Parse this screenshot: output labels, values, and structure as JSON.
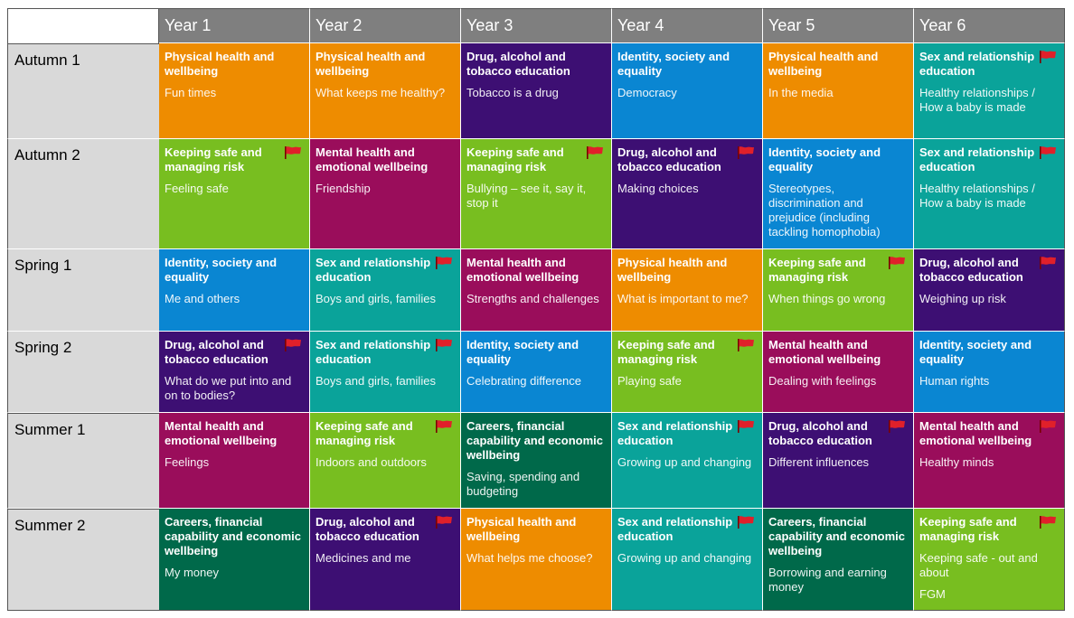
{
  "colors": {
    "physical": "#ee8c00",
    "drug": "#3d0f73",
    "identity": "#0a86d2",
    "sex": "#0aa39a",
    "safe": "#78be20",
    "mental": "#9a0d5b",
    "careers": "#00694a",
    "flag": "#e0202a"
  },
  "years": [
    "Year 1",
    "Year 2",
    "Year 3",
    "Year 4",
    "Year 5",
    "Year 6"
  ],
  "terms": [
    "Autumn 1",
    "Autumn 2",
    "Spring 1",
    "Spring 2",
    "Summer 1",
    "Summer 2"
  ],
  "rows": [
    [
      {
        "theme": "Physical health and wellbeing",
        "topic": "Fun times",
        "color": "orange",
        "flag": false
      },
      {
        "theme": "Physical health and wellbeing",
        "topic": "What keeps me healthy?",
        "color": "orange",
        "flag": false
      },
      {
        "theme": "Drug, alcohol and tobacco education",
        "topic": "Tobacco is a drug",
        "color": "purple",
        "flag": false
      },
      {
        "theme": "Identity, society and equality",
        "topic": "Democracy",
        "color": "blue",
        "flag": false
      },
      {
        "theme": "Physical health and wellbeing",
        "topic": "In the media",
        "color": "orange",
        "flag": false
      },
      {
        "theme": "Sex and relationship education",
        "topic": "Healthy relationships / How a baby is made",
        "color": "teal",
        "flag": true
      }
    ],
    [
      {
        "theme": "Keeping safe and managing risk",
        "topic": "Feeling safe",
        "color": "green",
        "flag": true
      },
      {
        "theme": "Mental health and emotional wellbeing",
        "topic": "Friendship",
        "color": "maroon",
        "flag": false
      },
      {
        "theme": "Keeping safe and managing risk",
        "topic": "Bullying – see it, say it, stop it",
        "color": "green",
        "flag": true
      },
      {
        "theme": "Drug, alcohol and tobacco education",
        "topic": "Making choices",
        "color": "purple",
        "flag": true
      },
      {
        "theme": "Identity, society and equality",
        "topic": "Stereotypes, discrimination and prejudice (including tackling homophobia)",
        "color": "blue",
        "flag": false
      },
      {
        "theme": "Sex and relationship education",
        "topic": "Healthy relationships / How a baby is made",
        "color": "teal",
        "flag": true
      }
    ],
    [
      {
        "theme": "Identity, society and equality",
        "topic": "Me and others",
        "color": "blue",
        "flag": false
      },
      {
        "theme": "Sex and relationship education",
        "topic": "Boys and girls, families",
        "color": "teal",
        "flag": true
      },
      {
        "theme": "Mental health and emotional wellbeing",
        "topic": "Strengths and challenges",
        "color": "maroon",
        "flag": false
      },
      {
        "theme": "Physical health and wellbeing",
        "topic": "What is important to me?",
        "color": "orange",
        "flag": false
      },
      {
        "theme": "Keeping safe and managing risk",
        "topic": "When things go wrong",
        "color": "green",
        "flag": true
      },
      {
        "theme": "Drug, alcohol and tobacco education",
        "topic": "Weighing up risk",
        "color": "purple",
        "flag": true
      }
    ],
    [
      {
        "theme": "Drug, alcohol and tobacco education",
        "topic": "What do we put into and on to bodies?",
        "color": "purple",
        "flag": true
      },
      {
        "theme": "Sex and relationship education",
        "topic": "Boys and girls, families",
        "color": "teal",
        "flag": true
      },
      {
        "theme": "Identity, society and equality",
        "topic": "Celebrating difference",
        "color": "blue",
        "flag": false
      },
      {
        "theme": "Keeping safe and managing risk",
        "topic": "Playing safe",
        "color": "green",
        "flag": true
      },
      {
        "theme": "Mental health and emotional wellbeing",
        "topic": "Dealing with feelings",
        "color": "maroon",
        "flag": false
      },
      {
        "theme": "Identity, society and equality",
        "topic": "Human rights",
        "color": "blue",
        "flag": false
      }
    ],
    [
      {
        "theme": "Mental health and emotional wellbeing",
        "topic": "Feelings",
        "color": "maroon",
        "flag": false
      },
      {
        "theme": "Keeping safe and managing risk",
        "topic": "Indoors and outdoors",
        "color": "green",
        "flag": true
      },
      {
        "theme": "Careers, financial capability and economic wellbeing",
        "topic": "Saving, spending and budgeting",
        "color": "dgreen",
        "flag": false
      },
      {
        "theme": "Sex and relationship education",
        "topic": "Growing up and changing",
        "color": "teal",
        "flag": true
      },
      {
        "theme": "Drug, alcohol and tobacco education",
        "topic": "Different influences",
        "color": "purple",
        "flag": true
      },
      {
        "theme": "Mental health and emotional wellbeing",
        "topic": "Healthy minds",
        "color": "maroon",
        "flag": true
      }
    ],
    [
      {
        "theme": "Careers, financial capability and economic wellbeing",
        "topic": "My money",
        "color": "dgreen",
        "flag": false
      },
      {
        "theme": "Drug, alcohol and tobacco education",
        "topic": "Medicines and me",
        "color": "purple",
        "flag": true
      },
      {
        "theme": "Physical health and wellbeing",
        "topic": "What helps me choose?",
        "color": "orange",
        "flag": false
      },
      {
        "theme": "Sex and relationship education",
        "topic": "Growing up and changing",
        "color": "teal",
        "flag": true
      },
      {
        "theme": "Careers, financial capability and economic wellbeing",
        "topic": "Borrowing and earning money",
        "color": "dgreen",
        "flag": false
      },
      {
        "theme": "Keeping safe and managing risk",
        "topic": "Keeping safe - out and about",
        "topic2": "FGM",
        "color": "green",
        "flag": true
      }
    ]
  ]
}
